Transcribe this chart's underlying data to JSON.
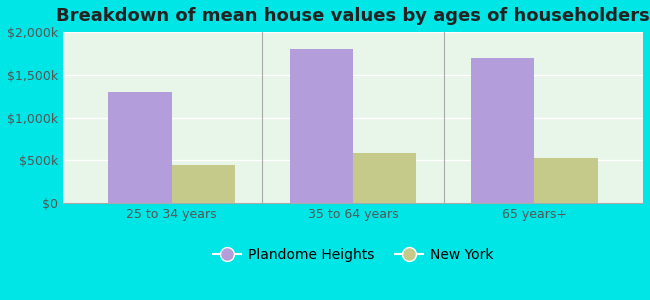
{
  "title": "Breakdown of mean house values by ages of householders",
  "categories": [
    "25 to 34 years",
    "35 to 64 years",
    "65 years+"
  ],
  "plandome_values": [
    1300000,
    1800000,
    1700000
  ],
  "newyork_values": [
    450000,
    580000,
    530000
  ],
  "plandome_color": "#b39ddb",
  "newyork_color": "#c5c98a",
  "background_color": "#00e5e5",
  "ylim": [
    0,
    2000000
  ],
  "yticks": [
    0,
    500000,
    1000000,
    1500000,
    2000000
  ],
  "ytick_labels": [
    "$0",
    "$500k",
    "$1,000k",
    "$1,500k",
    "$2,000k"
  ],
  "legend_label_1": "Plandome Heights",
  "legend_label_2": "New York",
  "bar_width": 0.35,
  "title_fontsize": 13,
  "tick_fontsize": 9,
  "legend_fontsize": 10
}
